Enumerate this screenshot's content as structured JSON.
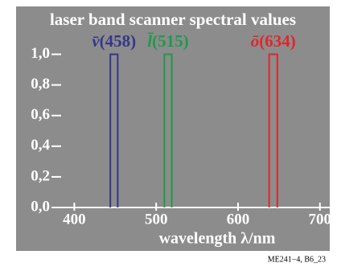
{
  "chart_data": {
    "type": "band",
    "title": "laser band scanner spectral values",
    "x_label": "wavelength λ/nm",
    "footer": "ME241−4, B6_23",
    "series": [
      {
        "symbol": "v̄",
        "name": "(458)",
        "color": "#35358f",
        "x": [
          444,
          453
        ],
        "value": 1
      },
      {
        "symbol": "l̄",
        "name": "(515)",
        "color": "#1e9a4a",
        "x": [
          510,
          519
        ],
        "value": 1
      },
      {
        "symbol": "ō",
        "name": "(634)",
        "color": "#e0262b",
        "x": [
          638,
          648
        ],
        "value": 1
      }
    ],
    "xlim": [
      378,
      712
    ],
    "xticks": [
      400,
      500,
      600,
      700
    ],
    "ylim": [
      0,
      1.05
    ],
    "yticks": [
      {
        "value": 0,
        "label": "0,0"
      },
      {
        "value": 0.2,
        "label": "0,2"
      },
      {
        "value": 0.4,
        "label": "0,4"
      },
      {
        "value": 0.6,
        "label": "0,6"
      },
      {
        "value": 0.8,
        "label": "0,8"
      },
      {
        "value": 1,
        "label": "1,0"
      }
    ]
  }
}
